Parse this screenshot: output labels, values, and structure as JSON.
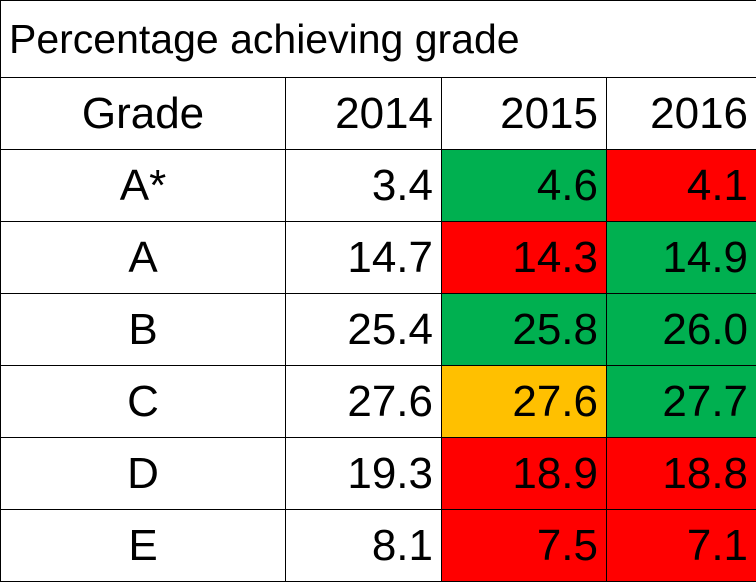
{
  "chart_data": {
    "type": "table",
    "title": "Percentage achieving grade",
    "columns": [
      "Grade",
      "2014",
      "2015",
      "2016"
    ],
    "rows": [
      {
        "grade": "A*",
        "values": [
          "3.4",
          "4.6",
          "4.1"
        ],
        "colors": [
          "white",
          "green",
          "red"
        ]
      },
      {
        "grade": "A",
        "values": [
          "14.7",
          "14.3",
          "14.9"
        ],
        "colors": [
          "white",
          "red",
          "green"
        ]
      },
      {
        "grade": "B",
        "values": [
          "25.4",
          "25.8",
          "26.0"
        ],
        "colors": [
          "white",
          "green",
          "green"
        ]
      },
      {
        "grade": "C",
        "values": [
          "27.6",
          "27.6",
          "27.7"
        ],
        "colors": [
          "white",
          "amber",
          "green"
        ]
      },
      {
        "grade": "D",
        "values": [
          "19.3",
          "18.9",
          "18.8"
        ],
        "colors": [
          "white",
          "red",
          "red"
        ]
      },
      {
        "grade": "E",
        "values": [
          "8.1",
          "7.5",
          "7.1"
        ],
        "colors": [
          "white",
          "red",
          "red"
        ]
      }
    ],
    "palette": {
      "green": "#00b050",
      "red": "#ff0000",
      "amber": "#ffc000",
      "white": "#ffffff"
    }
  }
}
